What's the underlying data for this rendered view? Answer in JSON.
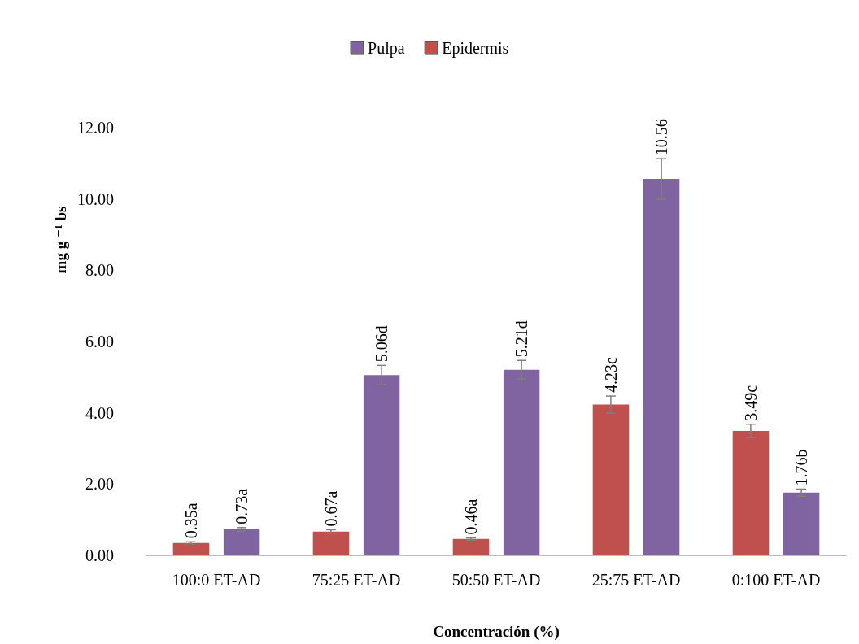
{
  "chart_data": {
    "type": "bar",
    "xlabel": "Concentración (%)",
    "ylabel": "mg g ⁻¹ bs",
    "categories": [
      "100:0 ET-AD",
      "75:25 ET-AD",
      "50:50 ET-AD",
      "25:75 ET-AD",
      "0:100 ET-AD"
    ],
    "series": [
      {
        "name": "Epidermis",
        "color": "#c0504d",
        "values": [
          0.35,
          0.67,
          0.46,
          4.23,
          3.49
        ],
        "errors": [
          0.03,
          0.05,
          0.03,
          0.24,
          0.19
        ],
        "value_labels": [
          "0.35a",
          "0.67a",
          "0.46a",
          "4.23c",
          "3.49c"
        ]
      },
      {
        "name": "Pulpa",
        "color": "#8064a2",
        "values": [
          0.73,
          5.06,
          5.21,
          10.56,
          1.76
        ],
        "errors": [
          0.05,
          0.27,
          0.26,
          0.57,
          0.1
        ],
        "value_labels": [
          "0.73a",
          "5.06d",
          "5.21d",
          "10.56",
          "1.76b"
        ]
      }
    ],
    "ylim": [
      0,
      12
    ],
    "yticks": [
      {
        "value": 0,
        "label": "0.00"
      },
      {
        "value": 2,
        "label": "2.00"
      },
      {
        "value": 4,
        "label": "4.00"
      },
      {
        "value": 6,
        "label": "6.00"
      },
      {
        "value": 8,
        "label": "8.00"
      },
      {
        "value": 10,
        "label": "10.00"
      },
      {
        "value": 12,
        "label": "12.00"
      }
    ],
    "grid": false,
    "legend": "top"
  }
}
